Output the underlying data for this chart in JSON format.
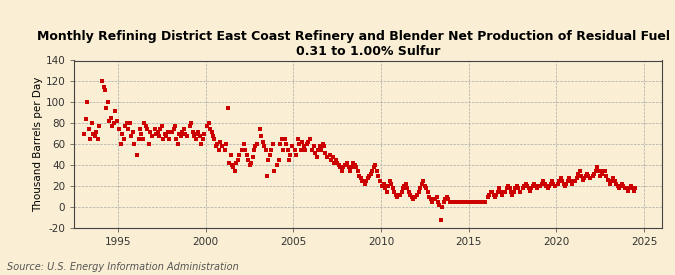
{
  "title": "Monthly Refining District East Coast Refinery and Blender Net Production of Residual Fuel Oil,\n0.31 to 1.00% Sulfur",
  "ylabel": "Thousand Barrels per Day",
  "source": "Source: U.S. Energy Information Administration",
  "xlim": [
    1992.5,
    2026.0
  ],
  "ylim": [
    -20,
    140
  ],
  "yticks": [
    -20,
    0,
    20,
    40,
    60,
    80,
    100,
    120,
    140
  ],
  "xticks": [
    1995,
    2000,
    2005,
    2010,
    2015,
    2020,
    2025
  ],
  "background_color": "#faefd4",
  "marker_color": "#cc0000",
  "marker_size": 5,
  "grid_color": "#aaaaaa",
  "title_fontsize": 9,
  "ylabel_fontsize": 7.5,
  "tick_fontsize": 7.5,
  "source_fontsize": 7,
  "data_points": [
    [
      1993.08,
      70
    ],
    [
      1993.17,
      84
    ],
    [
      1993.25,
      100
    ],
    [
      1993.33,
      75
    ],
    [
      1993.42,
      65
    ],
    [
      1993.5,
      80
    ],
    [
      1993.58,
      70
    ],
    [
      1993.67,
      68
    ],
    [
      1993.75,
      72
    ],
    [
      1993.83,
      65
    ],
    [
      1993.92,
      78
    ],
    [
      1994.08,
      120
    ],
    [
      1994.17,
      115
    ],
    [
      1994.25,
      112
    ],
    [
      1994.33,
      95
    ],
    [
      1994.42,
      100
    ],
    [
      1994.5,
      82
    ],
    [
      1994.58,
      85
    ],
    [
      1994.67,
      78
    ],
    [
      1994.75,
      80
    ],
    [
      1994.83,
      92
    ],
    [
      1994.92,
      82
    ],
    [
      1995.08,
      75
    ],
    [
      1995.17,
      60
    ],
    [
      1995.25,
      70
    ],
    [
      1995.33,
      65
    ],
    [
      1995.42,
      78
    ],
    [
      1995.5,
      80
    ],
    [
      1995.58,
      75
    ],
    [
      1995.67,
      80
    ],
    [
      1995.75,
      68
    ],
    [
      1995.83,
      72
    ],
    [
      1995.92,
      60
    ],
    [
      1996.08,
      50
    ],
    [
      1996.17,
      65
    ],
    [
      1996.25,
      75
    ],
    [
      1996.33,
      70
    ],
    [
      1996.42,
      65
    ],
    [
      1996.5,
      80
    ],
    [
      1996.58,
      78
    ],
    [
      1996.67,
      75
    ],
    [
      1996.75,
      60
    ],
    [
      1996.83,
      72
    ],
    [
      1996.92,
      68
    ],
    [
      1997.08,
      75
    ],
    [
      1997.17,
      70
    ],
    [
      1997.25,
      72
    ],
    [
      1997.33,
      68
    ],
    [
      1997.42,
      75
    ],
    [
      1997.5,
      78
    ],
    [
      1997.58,
      65
    ],
    [
      1997.67,
      70
    ],
    [
      1997.75,
      68
    ],
    [
      1997.83,
      72
    ],
    [
      1997.92,
      65
    ],
    [
      1998.08,
      72
    ],
    [
      1998.17,
      75
    ],
    [
      1998.25,
      78
    ],
    [
      1998.33,
      65
    ],
    [
      1998.42,
      60
    ],
    [
      1998.5,
      70
    ],
    [
      1998.58,
      68
    ],
    [
      1998.67,
      72
    ],
    [
      1998.75,
      75
    ],
    [
      1998.83,
      70
    ],
    [
      1998.92,
      68
    ],
    [
      1999.08,
      78
    ],
    [
      1999.17,
      80
    ],
    [
      1999.25,
      72
    ],
    [
      1999.33,
      68
    ],
    [
      1999.42,
      65
    ],
    [
      1999.5,
      70
    ],
    [
      1999.58,
      72
    ],
    [
      1999.67,
      68
    ],
    [
      1999.75,
      60
    ],
    [
      1999.83,
      65
    ],
    [
      1999.92,
      70
    ],
    [
      2000.08,
      78
    ],
    [
      2000.17,
      80
    ],
    [
      2000.25,
      75
    ],
    [
      2000.33,
      72
    ],
    [
      2000.42,
      68
    ],
    [
      2000.5,
      65
    ],
    [
      2000.58,
      58
    ],
    [
      2000.67,
      60
    ],
    [
      2000.75,
      55
    ],
    [
      2000.83,
      62
    ],
    [
      2000.92,
      58
    ],
    [
      2001.08,
      55
    ],
    [
      2001.17,
      60
    ],
    [
      2001.25,
      95
    ],
    [
      2001.33,
      42
    ],
    [
      2001.42,
      50
    ],
    [
      2001.5,
      40
    ],
    [
      2001.58,
      38
    ],
    [
      2001.67,
      35
    ],
    [
      2001.75,
      42
    ],
    [
      2001.83,
      45
    ],
    [
      2001.92,
      50
    ],
    [
      2002.08,
      55
    ],
    [
      2002.17,
      60
    ],
    [
      2002.25,
      55
    ],
    [
      2002.33,
      50
    ],
    [
      2002.42,
      45
    ],
    [
      2002.5,
      40
    ],
    [
      2002.58,
      42
    ],
    [
      2002.67,
      48
    ],
    [
      2002.75,
      55
    ],
    [
      2002.83,
      58
    ],
    [
      2002.92,
      60
    ],
    [
      2003.08,
      75
    ],
    [
      2003.17,
      68
    ],
    [
      2003.25,
      62
    ],
    [
      2003.33,
      58
    ],
    [
      2003.42,
      55
    ],
    [
      2003.5,
      30
    ],
    [
      2003.58,
      45
    ],
    [
      2003.67,
      50
    ],
    [
      2003.75,
      55
    ],
    [
      2003.83,
      60
    ],
    [
      2003.92,
      35
    ],
    [
      2004.08,
      40
    ],
    [
      2004.17,
      45
    ],
    [
      2004.25,
      60
    ],
    [
      2004.33,
      65
    ],
    [
      2004.42,
      55
    ],
    [
      2004.5,
      65
    ],
    [
      2004.58,
      60
    ],
    [
      2004.67,
      55
    ],
    [
      2004.75,
      45
    ],
    [
      2004.83,
      50
    ],
    [
      2004.92,
      58
    ],
    [
      2005.08,
      55
    ],
    [
      2005.17,
      50
    ],
    [
      2005.25,
      65
    ],
    [
      2005.33,
      60
    ],
    [
      2005.42,
      55
    ],
    [
      2005.5,
      62
    ],
    [
      2005.58,
      58
    ],
    [
      2005.67,
      55
    ],
    [
      2005.75,
      60
    ],
    [
      2005.83,
      62
    ],
    [
      2005.92,
      65
    ],
    [
      2006.08,
      55
    ],
    [
      2006.17,
      58
    ],
    [
      2006.25,
      52
    ],
    [
      2006.33,
      48
    ],
    [
      2006.42,
      55
    ],
    [
      2006.5,
      58
    ],
    [
      2006.58,
      55
    ],
    [
      2006.67,
      60
    ],
    [
      2006.75,
      58
    ],
    [
      2006.83,
      52
    ],
    [
      2006.92,
      48
    ],
    [
      2007.08,
      50
    ],
    [
      2007.17,
      45
    ],
    [
      2007.25,
      48
    ],
    [
      2007.33,
      42
    ],
    [
      2007.42,
      45
    ],
    [
      2007.5,
      42
    ],
    [
      2007.58,
      40
    ],
    [
      2007.67,
      38
    ],
    [
      2007.75,
      35
    ],
    [
      2007.83,
      38
    ],
    [
      2007.92,
      40
    ],
    [
      2008.08,
      42
    ],
    [
      2008.17,
      38
    ],
    [
      2008.25,
      35
    ],
    [
      2008.33,
      38
    ],
    [
      2008.42,
      42
    ],
    [
      2008.5,
      40
    ],
    [
      2008.58,
      38
    ],
    [
      2008.67,
      35
    ],
    [
      2008.75,
      30
    ],
    [
      2008.83,
      28
    ],
    [
      2008.92,
      25
    ],
    [
      2009.08,
      22
    ],
    [
      2009.17,
      25
    ],
    [
      2009.25,
      28
    ],
    [
      2009.33,
      30
    ],
    [
      2009.42,
      32
    ],
    [
      2009.5,
      35
    ],
    [
      2009.58,
      38
    ],
    [
      2009.67,
      40
    ],
    [
      2009.75,
      35
    ],
    [
      2009.83,
      30
    ],
    [
      2009.92,
      25
    ],
    [
      2010.08,
      20
    ],
    [
      2010.17,
      22
    ],
    [
      2010.25,
      18
    ],
    [
      2010.33,
      15
    ],
    [
      2010.42,
      20
    ],
    [
      2010.5,
      25
    ],
    [
      2010.58,
      22
    ],
    [
      2010.67,
      18
    ],
    [
      2010.75,
      15
    ],
    [
      2010.83,
      12
    ],
    [
      2010.92,
      10
    ],
    [
      2011.08,
      12
    ],
    [
      2011.17,
      15
    ],
    [
      2011.25,
      18
    ],
    [
      2011.33,
      20
    ],
    [
      2011.42,
      22
    ],
    [
      2011.5,
      18
    ],
    [
      2011.58,
      15
    ],
    [
      2011.67,
      12
    ],
    [
      2011.75,
      10
    ],
    [
      2011.83,
      8
    ],
    [
      2011.92,
      10
    ],
    [
      2012.08,
      12
    ],
    [
      2012.17,
      15
    ],
    [
      2012.25,
      18
    ],
    [
      2012.33,
      22
    ],
    [
      2012.42,
      25
    ],
    [
      2012.5,
      20
    ],
    [
      2012.58,
      18
    ],
    [
      2012.67,
      15
    ],
    [
      2012.75,
      10
    ],
    [
      2012.83,
      8
    ],
    [
      2012.92,
      5
    ],
    [
      2013.08,
      8
    ],
    [
      2013.17,
      10
    ],
    [
      2013.25,
      5
    ],
    [
      2013.33,
      2
    ],
    [
      2013.42,
      -12
    ],
    [
      2013.5,
      0
    ],
    [
      2013.58,
      5
    ],
    [
      2013.67,
      8
    ],
    [
      2013.75,
      10
    ],
    [
      2013.83,
      8
    ],
    [
      2013.92,
      5
    ],
    [
      2014.08,
      5
    ],
    [
      2014.17,
      5
    ],
    [
      2014.25,
      5
    ],
    [
      2014.33,
      5
    ],
    [
      2014.42,
      5
    ],
    [
      2014.5,
      5
    ],
    [
      2014.58,
      5
    ],
    [
      2014.67,
      5
    ],
    [
      2014.75,
      5
    ],
    [
      2014.83,
      5
    ],
    [
      2014.92,
      5
    ],
    [
      2015.08,
      5
    ],
    [
      2015.17,
      5
    ],
    [
      2015.25,
      5
    ],
    [
      2015.33,
      5
    ],
    [
      2015.42,
      5
    ],
    [
      2015.5,
      5
    ],
    [
      2015.58,
      5
    ],
    [
      2015.67,
      5
    ],
    [
      2015.75,
      5
    ],
    [
      2015.83,
      5
    ],
    [
      2015.92,
      5
    ],
    [
      2016.08,
      10
    ],
    [
      2016.17,
      12
    ],
    [
      2016.25,
      15
    ],
    [
      2016.33,
      15
    ],
    [
      2016.42,
      12
    ],
    [
      2016.5,
      10
    ],
    [
      2016.58,
      12
    ],
    [
      2016.67,
      15
    ],
    [
      2016.75,
      18
    ],
    [
      2016.83,
      15
    ],
    [
      2016.92,
      12
    ],
    [
      2017.08,
      15
    ],
    [
      2017.17,
      18
    ],
    [
      2017.25,
      20
    ],
    [
      2017.33,
      18
    ],
    [
      2017.42,
      15
    ],
    [
      2017.5,
      12
    ],
    [
      2017.58,
      15
    ],
    [
      2017.67,
      18
    ],
    [
      2017.75,
      20
    ],
    [
      2017.83,
      18
    ],
    [
      2017.92,
      15
    ],
    [
      2018.08,
      18
    ],
    [
      2018.17,
      20
    ],
    [
      2018.25,
      22
    ],
    [
      2018.33,
      20
    ],
    [
      2018.42,
      18
    ],
    [
      2018.5,
      16
    ],
    [
      2018.58,
      18
    ],
    [
      2018.67,
      20
    ],
    [
      2018.75,
      22
    ],
    [
      2018.83,
      20
    ],
    [
      2018.92,
      18
    ],
    [
      2019.08,
      20
    ],
    [
      2019.17,
      22
    ],
    [
      2019.25,
      25
    ],
    [
      2019.33,
      22
    ],
    [
      2019.42,
      20
    ],
    [
      2019.5,
      18
    ],
    [
      2019.58,
      20
    ],
    [
      2019.67,
      22
    ],
    [
      2019.75,
      25
    ],
    [
      2019.83,
      22
    ],
    [
      2019.92,
      20
    ],
    [
      2020.08,
      22
    ],
    [
      2020.17,
      25
    ],
    [
      2020.25,
      28
    ],
    [
      2020.33,
      25
    ],
    [
      2020.42,
      22
    ],
    [
      2020.5,
      20
    ],
    [
      2020.58,
      22
    ],
    [
      2020.67,
      25
    ],
    [
      2020.75,
      28
    ],
    [
      2020.83,
      25
    ],
    [
      2020.92,
      22
    ],
    [
      2021.08,
      25
    ],
    [
      2021.17,
      28
    ],
    [
      2021.25,
      32
    ],
    [
      2021.33,
      35
    ],
    [
      2021.42,
      30
    ],
    [
      2021.5,
      26
    ],
    [
      2021.58,
      28
    ],
    [
      2021.67,
      30
    ],
    [
      2021.75,
      32
    ],
    [
      2021.83,
      30
    ],
    [
      2021.92,
      28
    ],
    [
      2022.08,
      30
    ],
    [
      2022.17,
      32
    ],
    [
      2022.25,
      35
    ],
    [
      2022.33,
      38
    ],
    [
      2022.42,
      35
    ],
    [
      2022.5,
      30
    ],
    [
      2022.58,
      32
    ],
    [
      2022.67,
      35
    ],
    [
      2022.75,
      35
    ],
    [
      2022.83,
      30
    ],
    [
      2022.92,
      26
    ],
    [
      2023.08,
      22
    ],
    [
      2023.17,
      25
    ],
    [
      2023.25,
      28
    ],
    [
      2023.33,
      25
    ],
    [
      2023.42,
      22
    ],
    [
      2023.5,
      20
    ],
    [
      2023.58,
      18
    ],
    [
      2023.67,
      20
    ],
    [
      2023.75,
      22
    ],
    [
      2023.83,
      20
    ],
    [
      2023.92,
      18
    ],
    [
      2024.08,
      16
    ],
    [
      2024.17,
      18
    ],
    [
      2024.25,
      20
    ],
    [
      2024.33,
      18
    ],
    [
      2024.42,
      16
    ],
    [
      2024.5,
      18
    ]
  ]
}
